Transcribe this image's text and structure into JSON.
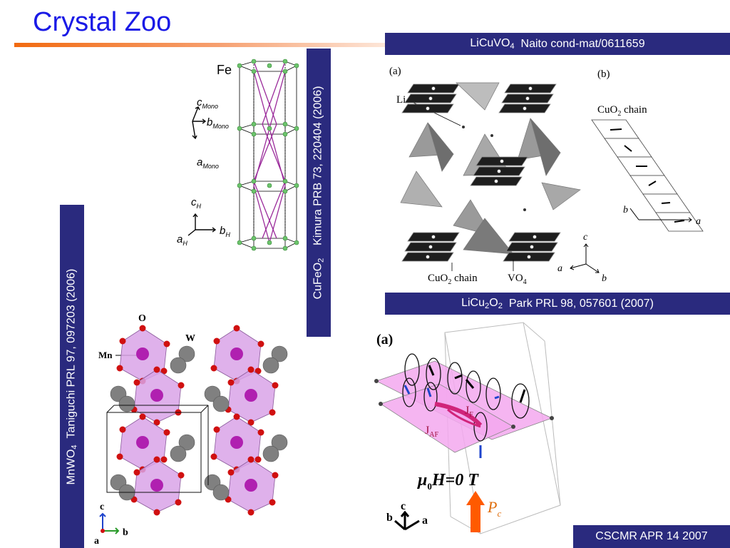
{
  "slide": {
    "title": "Crystal Zoo",
    "footer": "CSCMR APR 14 2007"
  },
  "captions": {
    "licuvo4": {
      "formula": "LiCuVO",
      "sub": "4",
      "ref": "Naito cond-mat/0611659"
    },
    "licu2o2": {
      "f1": "LiCu",
      "s1": "2",
      "f2": "O",
      "s2": "2",
      "ref": "Park PRL 98, 057601 (2007)"
    },
    "cufeo2": {
      "formula": "CuFeO",
      "sub": "2",
      "ref": "Kimura PRB 73, 220404 (2006)"
    },
    "mnwo4": {
      "formula": "MnWO",
      "sub": "4",
      "ref": "Taniguchi PRL 97, 097203 (2006)"
    }
  },
  "figures": {
    "cufeo2": {
      "fe": "Fe",
      "c_mono": "c",
      "b_mono": "b",
      "a_mono": "a",
      "mono_sub": "Mono",
      "c_h": "c",
      "b_h": "b",
      "a_h": "a",
      "h_sub": "H"
    },
    "licuvo4": {
      "panel_a": "(a)",
      "panel_b": "(b)",
      "li": "Li",
      "cuo2_chain_a": "CuO",
      "cuo2_chain_a_sub": "2",
      "cuo2_chain_a_tail": " chain",
      "vo4": "VO",
      "vo4_sub": "4",
      "cuo2_chain_b": "CuO",
      "cuo2_chain_b_sub": "2",
      "cuo2_chain_b_tail": " chain",
      "axis_c": "c",
      "axis_a": "a",
      "axis_b": "b",
      "axis_b2": "b",
      "axis_a2": "a"
    },
    "licu2o2": {
      "panel_a": "(a)",
      "jf": "J",
      "jf_sub": "F",
      "jaf": "J",
      "jaf_sub": "AF",
      "field_label": "μ",
      "field_sub": "0",
      "field_tail": "H=0 T",
      "pc": "P",
      "pc_sub": "c",
      "axis_c": "c",
      "axis_b": "b",
      "axis_a": "a"
    },
    "mnwo4": {
      "o": "O",
      "w": "W",
      "mn": "Mn",
      "axis_c": "c",
      "axis_b": "b",
      "axis_a": "a"
    }
  },
  "colors": {
    "title": "#1a1ae6",
    "band": "#2a2a7e",
    "rule": "#f26a10",
    "octahedron": "#d9a3e8",
    "oxygen": "#d01010",
    "manganese": "#b020b0",
    "tungsten": "#808080",
    "plane_pink": "#f3a8ef",
    "pc_arrow": "#ff5a00",
    "green_atom": "#6cc46c"
  }
}
